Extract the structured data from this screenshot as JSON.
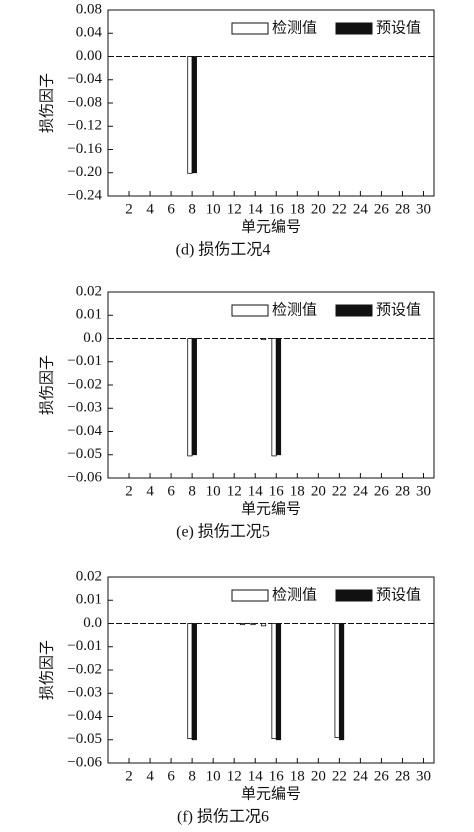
{
  "chart_data": [
    {
      "type": "bar",
      "caption": "(d) 损伤工况4",
      "xlabel": "单元编号",
      "ylabel": "损伤因子",
      "x": [
        1,
        2,
        3,
        4,
        5,
        6,
        7,
        8,
        9,
        10,
        11,
        12,
        13,
        14,
        15,
        16,
        17,
        18,
        19,
        20,
        21,
        22,
        23,
        24,
        25,
        26,
        27,
        28,
        29,
        30
      ],
      "series": [
        {
          "name": "检测值",
          "color": "#ffffff",
          "values": [
            0,
            0,
            0,
            0,
            0,
            0,
            0,
            -0.201,
            0,
            0,
            0,
            0,
            0,
            0,
            0,
            0,
            0,
            0,
            0,
            0,
            0,
            0,
            0,
            0,
            0,
            0,
            0,
            0,
            0,
            0
          ]
        },
        {
          "name": "预设值",
          "color": "#111111",
          "values": [
            0,
            0,
            0,
            0,
            0,
            0,
            0,
            -0.2,
            0,
            0,
            0,
            0,
            0,
            0,
            0,
            0,
            0,
            0,
            0,
            0,
            0,
            0,
            0,
            0,
            0,
            0,
            0,
            0,
            0,
            0
          ]
        }
      ],
      "xlim": [
        0,
        31
      ],
      "xticks": [
        2,
        4,
        6,
        8,
        10,
        12,
        14,
        16,
        18,
        20,
        22,
        24,
        26,
        28,
        30
      ],
      "ylim": [
        -0.24,
        0.08
      ],
      "yticks": [
        {
          "value": 0.08,
          "label": "0.08"
        },
        {
          "value": 0.04,
          "label": "0.04"
        },
        {
          "value": 0,
          "label": "0.00"
        },
        {
          "value": -0.04,
          "label": "−0.04"
        },
        {
          "value": -0.08,
          "label": "−0.08"
        },
        {
          "value": -0.12,
          "label": "−0.12"
        },
        {
          "value": -0.16,
          "label": "−0.16"
        },
        {
          "value": -0.2,
          "label": "−0.20"
        },
        {
          "value": -0.24,
          "label": "−0.24"
        }
      ]
    },
    {
      "type": "bar",
      "caption": "(e) 损伤工况5",
      "xlabel": "单元编号",
      "ylabel": "损伤因子",
      "x": [
        1,
        2,
        3,
        4,
        5,
        6,
        7,
        8,
        9,
        10,
        11,
        12,
        13,
        14,
        15,
        16,
        17,
        18,
        19,
        20,
        21,
        22,
        23,
        24,
        25,
        26,
        27,
        28,
        29,
        30
      ],
      "series": [
        {
          "name": "检测值",
          "color": "#ffffff",
          "values": [
            0,
            0,
            0,
            0,
            0,
            0,
            0,
            -0.0505,
            0,
            0,
            0,
            0,
            0,
            0,
            -0.0005,
            -0.0505,
            0,
            0,
            0,
            0,
            0,
            0,
            0,
            0,
            0,
            0,
            0,
            0,
            0,
            0
          ]
        },
        {
          "name": "预设值",
          "color": "#111111",
          "values": [
            0,
            0,
            0,
            0,
            0,
            0,
            0,
            -0.05,
            0,
            0,
            0,
            0,
            0,
            0,
            0,
            -0.05,
            0,
            0,
            0,
            0,
            0,
            0,
            0,
            0,
            0,
            0,
            0,
            0,
            0,
            0
          ]
        }
      ],
      "xlim": [
        0,
        31
      ],
      "xticks": [
        2,
        4,
        6,
        8,
        10,
        12,
        14,
        16,
        18,
        20,
        22,
        24,
        26,
        28,
        30
      ],
      "ylim": [
        -0.06,
        0.02
      ],
      "yticks": [
        {
          "value": 0.02,
          "label": "0.02"
        },
        {
          "value": 0.01,
          "label": "0.01"
        },
        {
          "value": 0,
          "label": "0.0"
        },
        {
          "value": -0.01,
          "label": "−0.01"
        },
        {
          "value": -0.02,
          "label": "−0.02"
        },
        {
          "value": -0.03,
          "label": "−0.03"
        },
        {
          "value": -0.04,
          "label": "−0.04"
        },
        {
          "value": -0.05,
          "label": "−0.05"
        },
        {
          "value": -0.06,
          "label": "−0.06"
        }
      ]
    },
    {
      "type": "bar",
      "caption": "(f) 损伤工况6",
      "xlabel": "单元编号",
      "ylabel": "损伤因子",
      "x": [
        1,
        2,
        3,
        4,
        5,
        6,
        7,
        8,
        9,
        10,
        11,
        12,
        13,
        14,
        15,
        16,
        17,
        18,
        19,
        20,
        21,
        22,
        23,
        24,
        25,
        26,
        27,
        28,
        29,
        30
      ],
      "series": [
        {
          "name": "检测值",
          "color": "#ffffff",
          "values": [
            0,
            0,
            0,
            0,
            0,
            0,
            0,
            -0.0495,
            0,
            0,
            0,
            0,
            -0.0005,
            -0.0005,
            -0.001,
            -0.0495,
            0,
            0,
            0,
            0,
            0,
            -0.049,
            0,
            0,
            0,
            0,
            0,
            0,
            0,
            0
          ]
        },
        {
          "name": "预设值",
          "color": "#111111",
          "values": [
            0,
            0,
            0,
            0,
            0,
            0,
            0,
            -0.05,
            0,
            0,
            0,
            0,
            0,
            0,
            0,
            -0.05,
            0,
            0,
            0,
            0,
            0,
            -0.05,
            0,
            0,
            0,
            0,
            0,
            0,
            0,
            0
          ]
        }
      ],
      "xlim": [
        0,
        31
      ],
      "xticks": [
        2,
        4,
        6,
        8,
        10,
        12,
        14,
        16,
        18,
        20,
        22,
        24,
        26,
        28,
        30
      ],
      "ylim": [
        -0.06,
        0.02
      ],
      "yticks": [
        {
          "value": 0.02,
          "label": "0.02"
        },
        {
          "value": 0.01,
          "label": "0.01"
        },
        {
          "value": 0,
          "label": "0.0"
        },
        {
          "value": -0.01,
          "label": "−0.01"
        },
        {
          "value": -0.02,
          "label": "−0.02"
        },
        {
          "value": -0.03,
          "label": "−0.03"
        },
        {
          "value": -0.04,
          "label": "−0.04"
        },
        {
          "value": -0.05,
          "label": "−0.05"
        },
        {
          "value": -0.06,
          "label": "−0.06"
        }
      ]
    }
  ]
}
